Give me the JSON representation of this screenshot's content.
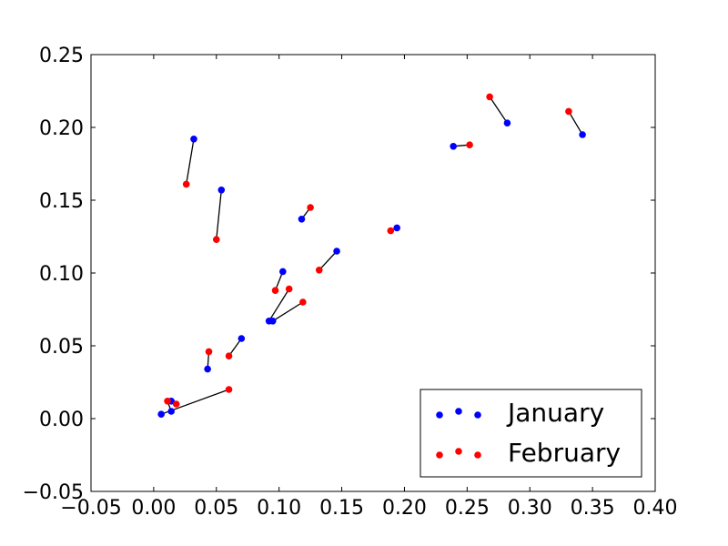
{
  "chart_data": {
    "type": "scatter",
    "title": "",
    "xlabel": "",
    "ylabel": "",
    "xlim": [
      -0.05,
      0.4
    ],
    "ylim": [
      -0.05,
      0.25
    ],
    "x_ticks": [
      "−0.05",
      "0.00",
      "0.05",
      "0.10",
      "0.15",
      "0.20",
      "0.25",
      "0.30",
      "0.35",
      "0.40"
    ],
    "y_ticks": [
      "−0.05",
      "0.00",
      "0.05",
      "0.10",
      "0.15",
      "0.20",
      "0.25"
    ],
    "grid": false,
    "legend_position": "bottom-right",
    "series": [
      {
        "name": "January",
        "color": "#0000ff",
        "points": [
          [
            0.032,
            0.192
          ],
          [
            0.054,
            0.157
          ],
          [
            0.118,
            0.137
          ],
          [
            0.194,
            0.131
          ],
          [
            0.239,
            0.187
          ],
          [
            0.282,
            0.203
          ],
          [
            0.342,
            0.195
          ],
          [
            0.146,
            0.115
          ],
          [
            0.103,
            0.101
          ],
          [
            0.092,
            0.067
          ],
          [
            0.095,
            0.067
          ],
          [
            0.07,
            0.055
          ],
          [
            0.043,
            0.034
          ],
          [
            0.014,
            0.012
          ],
          [
            0.014,
            0.005
          ],
          [
            0.006,
            0.003
          ]
        ]
      },
      {
        "name": "February",
        "color": "#ff0000",
        "points": [
          [
            0.026,
            0.161
          ],
          [
            0.05,
            0.123
          ],
          [
            0.125,
            0.145
          ],
          [
            0.189,
            0.129
          ],
          [
            0.252,
            0.188
          ],
          [
            0.268,
            0.221
          ],
          [
            0.331,
            0.211
          ],
          [
            0.132,
            0.102
          ],
          [
            0.097,
            0.088
          ],
          [
            0.108,
            0.089
          ],
          [
            0.119,
            0.08
          ],
          [
            0.06,
            0.043
          ],
          [
            0.044,
            0.046
          ],
          [
            0.018,
            0.01
          ],
          [
            0.011,
            0.012
          ],
          [
            0.06,
            0.02
          ]
        ]
      }
    ],
    "connectors_between_series": true,
    "connector_color": "#000000"
  }
}
